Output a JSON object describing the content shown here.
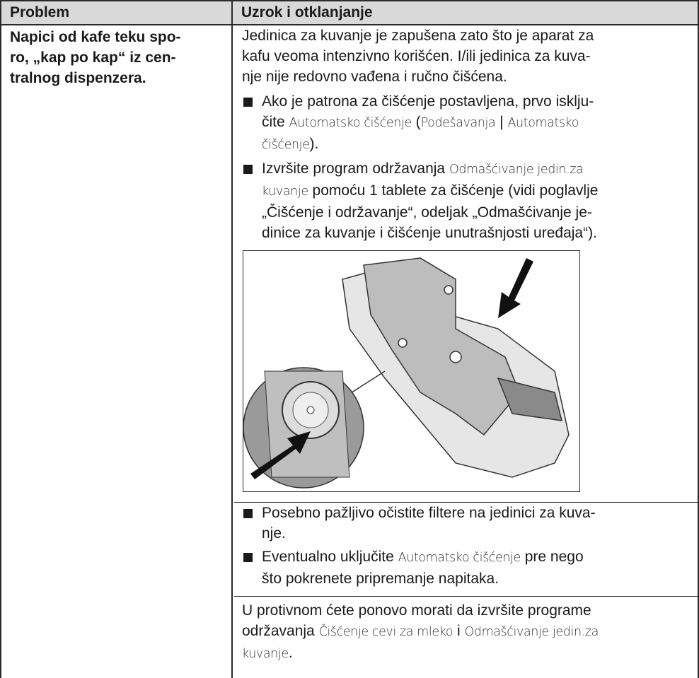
{
  "table": {
    "header": [
      "Problem",
      "Uzrok i otklanjanje"
    ],
    "problem": [
      [
        "Napici od kafe teku spo-"
      ],
      [
        "ro, „kap po kap“ iz cen-"
      ],
      [
        "tralnog dispenzera."
      ]
    ],
    "intro": [
      [
        "Jedinica za kuvanje je zapušena zato što je aparat za"
      ],
      [
        "kafu veoma intenzivno korišćen. I/ili jedinica za kuva-"
      ],
      [
        "nje nije redovno vađena i ručno čišćena."
      ]
    ],
    "bullets_before": [
      [
        [
          "Ako je patrona za čišćenje postavljena, prvo isklju-"
        ],
        [
          "čite ",
          {
            "ui": "Automatsko čišćenje"
          },
          " (",
          {
            "ui": "Podešavanja"
          },
          " | ",
          {
            "ui": "Automatsko"
          }
        ],
        [
          {
            "ui": "čišćenje"
          },
          ")."
        ]
      ],
      [
        [
          "Izvršite program održavanja ",
          {
            "ui": "Odmašćivanje jedin.za"
          }
        ],
        [
          {
            "ui": "kuvanje"
          },
          " pomoću 1 tablete za čišćenje (vidi poglavlje"
        ],
        [
          "„Čišćenje i održavanje“, odeljak „Odmašćivanje je-"
        ],
        [
          "dinice za kuvanje i čišćenje unutrašnjosti uređaja“)."
        ]
      ]
    ],
    "bullets_after": [
      [
        [
          "Posebno pažljivo očistite filtere na jedinici za kuva-"
        ],
        [
          "nje."
        ]
      ],
      [
        [
          "Eventualno uključite ",
          {
            "ui": "Automatsko čišćenje"
          },
          " pre nego"
        ],
        [
          "što pokrenete pripremanje napitaka."
        ]
      ]
    ],
    "outro": [
      [
        "U protivnom ćete ponovo morati da izvršite programe"
      ],
      [
        "održavanja ",
        {
          "ui": "Čišćenje cevi za mleko"
        },
        " i ",
        {
          "ui": "Odmašćivanje jedin.za"
        }
      ],
      [
        {
          "ui": "kuvanje"
        },
        "."
      ]
    ]
  }
}
